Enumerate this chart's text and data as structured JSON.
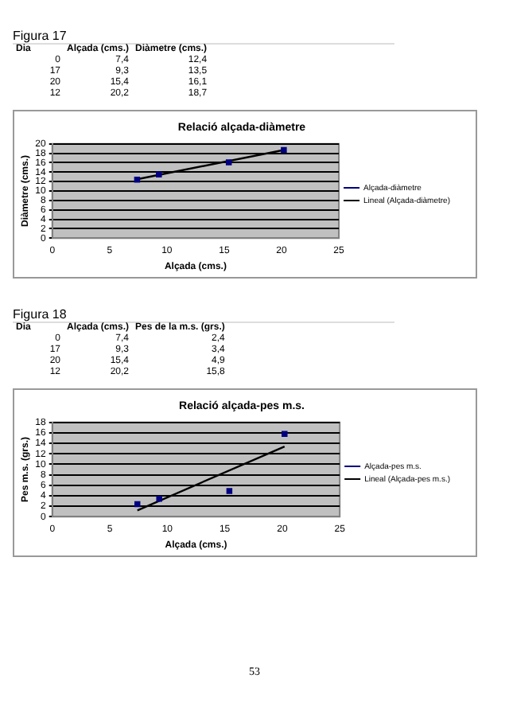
{
  "chart_data": [
    {
      "type": "other",
      "title": "Figura 17",
      "categories": [
        "Dia",
        "Alçada (cms.)",
        "Diàmetre (cms.)"
      ],
      "annotations": [
        "0",
        "7,4",
        "12,4",
        "17",
        "9,3",
        "13,5",
        "20",
        "15,4",
        "16,1",
        "12",
        "20,2",
        "18,7"
      ]
    },
    {
      "type": "scatter",
      "title": "Relació alçada-diàmetre",
      "xlabel": "Alçada (cms.)",
      "ylabel": "Diàmetre (cms.)",
      "xlim": [
        0,
        25
      ],
      "xticks": [
        0,
        5,
        10,
        15,
        20,
        25
      ],
      "ylim": [
        0,
        20
      ],
      "yticks": [
        0,
        2,
        4,
        6,
        8,
        10,
        12,
        14,
        16,
        18,
        20
      ],
      "grid": "y",
      "legend": "right",
      "series": [
        {
          "name": "Alçada-diàmetre",
          "type": "scatter",
          "color": "#000080",
          "marker": "square",
          "x": [
            7.4,
            9.3,
            15.4,
            20.2
          ],
          "values": [
            12.4,
            13.5,
            16.1,
            18.7
          ]
        },
        {
          "name": "Lineal (Alçada-diàmetre)",
          "type": "line",
          "color": "#000000",
          "marker": "none",
          "x": [
            7.4,
            20.2
          ],
          "values": [
            12.5,
            18.7
          ]
        }
      ]
    },
    {
      "type": "other",
      "title": "Figura 18",
      "categories": [
        "Dia",
        "Alçada (cms.)",
        "Pes de la m.s. (grs.)"
      ],
      "annotations": [
        "0",
        "7,4",
        "2,4",
        "17",
        "9,3",
        "3,4",
        "20",
        "15,4",
        "4,9",
        "12",
        "20,2",
        "15,8"
      ]
    },
    {
      "type": "scatter",
      "title": "Relació alçada-pes m.s.",
      "xlabel": "Alçada (cms.)",
      "ylabel": "Pes m.s. (grs.)",
      "annotations": [
        "53"
      ],
      "xlim": [
        0,
        25
      ],
      "xticks": [
        0,
        5,
        10,
        15,
        20,
        25
      ],
      "ylim": [
        0,
        18
      ],
      "yticks": [
        0,
        2,
        4,
        6,
        8,
        10,
        12,
        14,
        16,
        18
      ],
      "grid": "y",
      "legend": "right",
      "series": [
        {
          "name": "Alçada-pes m.s.",
          "type": "scatter",
          "color": "#000080",
          "marker": "square",
          "x": [
            7.4,
            9.3,
            15.4,
            20.2
          ],
          "values": [
            2.4,
            3.4,
            4.9,
            15.8
          ]
        },
        {
          "name": "Lineal (Alçada-pes m.s.)",
          "type": "line",
          "color": "#000000",
          "marker": "none",
          "x": [
            7.4,
            20.2
          ],
          "values": [
            1.2,
            13.4
          ]
        }
      ]
    }
  ]
}
